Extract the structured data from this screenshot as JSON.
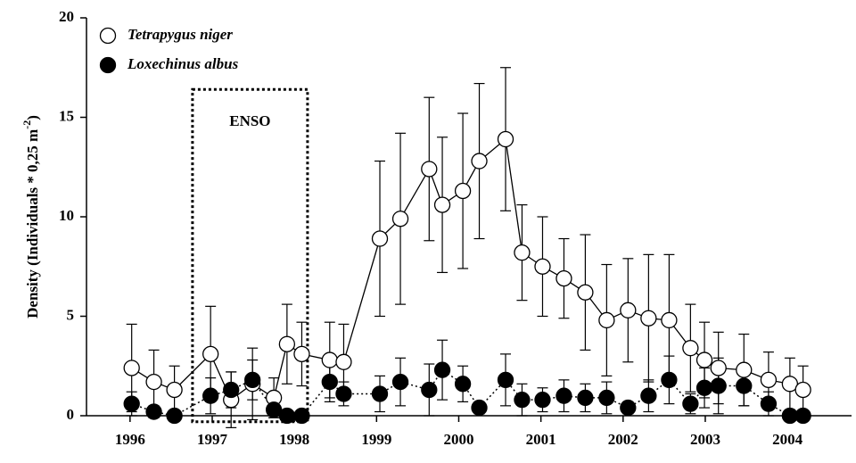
{
  "chart_data": {
    "type": "line",
    "ylabel": {
      "text": "Density (Individuals * 0,25 m",
      "superscript": "-2",
      "suffix": ")"
    },
    "x": [
      1996.02,
      1996.29,
      1996.54,
      1996.98,
      1997.23,
      1997.49,
      1997.75,
      1997.91,
      1998.09,
      1998.43,
      1998.6,
      1999.04,
      1999.29,
      1999.64,
      1999.8,
      2000.05,
      2000.25,
      2000.57,
      2000.77,
      2001.02,
      2001.28,
      2001.54,
      2001.8,
      2002.06,
      2002.31,
      2002.56,
      2002.82,
      2002.99,
      2003.16,
      2003.47,
      2003.77,
      2004.03,
      2004.19
    ],
    "series": [
      {
        "name": "Tetrapygus niger",
        "color": "#000000",
        "marker_fill": "#ffffff",
        "line": "solid",
        "values": [
          2.4,
          1.7,
          1.3,
          3.1,
          0.8,
          1.6,
          0.9,
          3.6,
          3.1,
          2.8,
          2.7,
          8.9,
          9.9,
          12.4,
          10.6,
          11.3,
          12.8,
          13.9,
          8.2,
          7.5,
          6.9,
          6.2,
          4.8,
          5.3,
          4.9,
          4.8,
          3.4,
          2.8,
          2.4,
          2.3,
          1.8,
          1.6,
          1.3
        ],
        "errors": [
          2.2,
          1.6,
          1.2,
          2.4,
          1.4,
          1.8,
          1.0,
          2.0,
          1.6,
          1.9,
          1.9,
          3.9,
          4.3,
          3.6,
          3.4,
          3.9,
          3.9,
          3.6,
          2.4,
          2.5,
          2.0,
          2.9,
          2.8,
          2.6,
          3.2,
          3.3,
          2.2,
          1.9,
          1.8,
          1.8,
          1.4,
          1.3,
          1.2
        ]
      },
      {
        "name": "Loxechinus albus",
        "color": "#000000",
        "marker_fill": "#000000",
        "line": "dotted",
        "values": [
          0.6,
          0.2,
          0,
          1.0,
          1.3,
          1.8,
          0.3,
          0,
          0,
          1.7,
          1.1,
          1.1,
          1.7,
          1.3,
          2.3,
          1.6,
          0.4,
          1.8,
          0.8,
          0.8,
          1.0,
          0.9,
          0.9,
          0.4,
          1.0,
          1.8,
          0.6,
          1.4,
          1.5,
          1.5,
          0.6,
          0,
          0
        ],
        "errors": [
          0.6,
          0.3,
          0,
          0.9,
          0.9,
          1.0,
          0.4,
          0,
          0,
          1.0,
          0.6,
          0.9,
          1.2,
          1.3,
          1.5,
          0.9,
          0.3,
          1.3,
          0.8,
          0.6,
          0.8,
          0.7,
          0.8,
          0.3,
          0.8,
          1.2,
          0.5,
          1.0,
          1.4,
          1.0,
          0.6,
          0,
          0
        ]
      }
    ],
    "annotations": [
      {
        "text": "ENSO",
        "x_range": [
          1996.76,
          1998.16
        ],
        "y_range": [
          -0.3,
          16.4
        ]
      }
    ],
    "xlim": [
      1995.47,
      2004.78
    ],
    "xticks": [
      1996,
      1997,
      1998,
      1999,
      2000,
      2001,
      2002,
      2003,
      2004
    ],
    "ylim": [
      0,
      20
    ],
    "yticks": [
      0,
      5,
      10,
      15,
      20
    ],
    "grid": false,
    "legend": "top-left"
  }
}
